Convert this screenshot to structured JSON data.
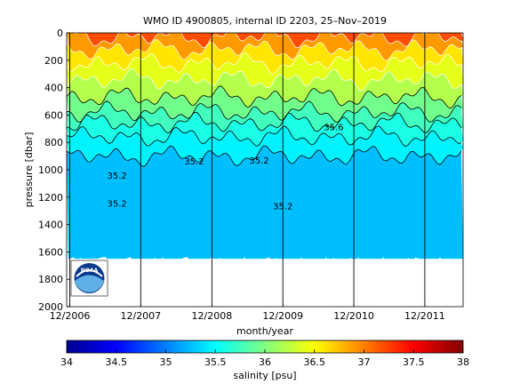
{
  "chart_data": {
    "type": "heatmap",
    "title": "WMO ID 4900805, internal ID 2203, 25–Nov–2019",
    "xlabel": "month/year",
    "ylabel": "pressure [dbar]",
    "colorbar_label": "salinity [psu]",
    "x_ticks": [
      "12/2006",
      "12/2007",
      "12/2008",
      "12/2009",
      "12/2010",
      "12/2011"
    ],
    "xlim": [
      "2006-11-15",
      "2012-06-15"
    ],
    "y_ticks": [
      0,
      200,
      400,
      600,
      800,
      1000,
      1200,
      1400,
      1600,
      1800,
      2000
    ],
    "ylim": [
      0,
      2000
    ],
    "y_reversed": true,
    "colorbar_ticks": [
      34,
      34.5,
      35,
      35.5,
      36,
      36.5,
      37,
      37.5,
      38
    ],
    "clim": [
      34,
      38
    ],
    "colormap": "jet",
    "contour_labels": [
      "35.2",
      "35.2",
      "35.2",
      "35.2",
      "35.2",
      "35.6"
    ],
    "salinity_bands": [
      {
        "top": 0,
        "bottom": 30,
        "salinity": 37.2
      },
      {
        "top": 30,
        "bottom": 120,
        "salinity": 36.9
      },
      {
        "top": 120,
        "bottom": 220,
        "salinity": 36.6
      },
      {
        "top": 220,
        "bottom": 340,
        "salinity": 36.4
      },
      {
        "top": 340,
        "bottom": 470,
        "salinity": 36.2
      },
      {
        "top": 470,
        "bottom": 580,
        "salinity": 35.95
      },
      {
        "top": 580,
        "bottom": 660,
        "salinity": 35.75
      },
      {
        "top": 660,
        "bottom": 760,
        "salinity": 35.6
      },
      {
        "top": 760,
        "bottom": 900,
        "salinity": 35.45
      },
      {
        "top": 900,
        "bottom": 1650,
        "salinity": 35.25
      }
    ],
    "data_bottom_pressure": 1650,
    "logo": {
      "text": "NOAA"
    }
  }
}
